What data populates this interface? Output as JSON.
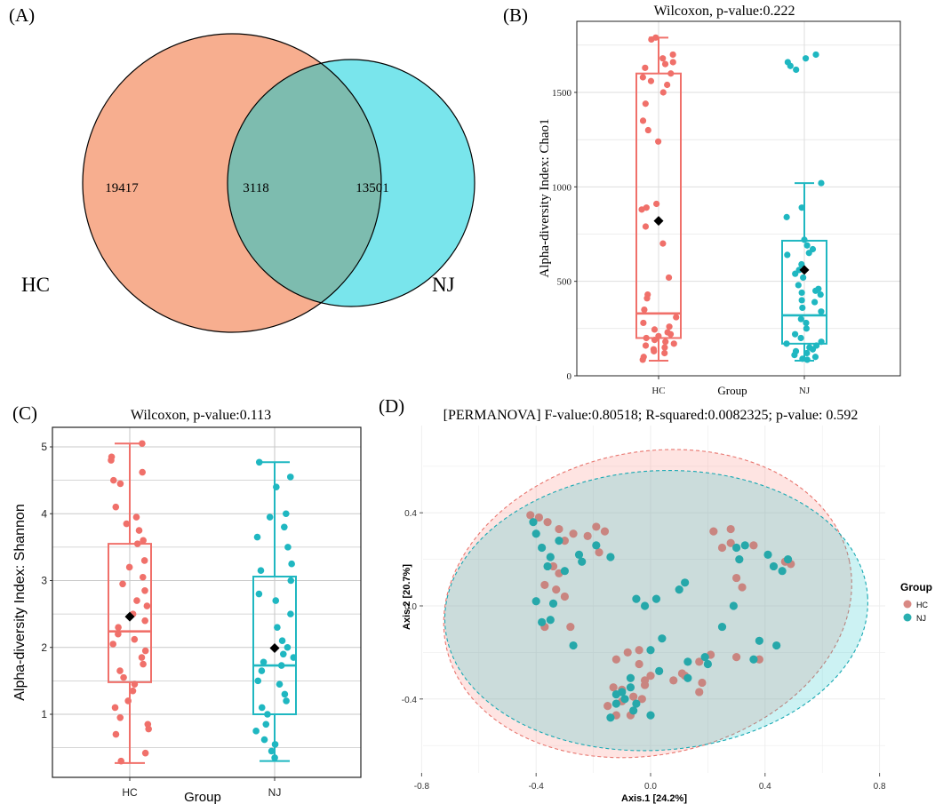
{
  "colors": {
    "hc": "#f0706a",
    "nj": "#1fb7c1",
    "venn_hc": "#f7ae8f",
    "venn_nj": "#79e5ec",
    "venn_overlap": "#7dbcaf",
    "mean_marker": "#000000"
  },
  "chart_data": [
    {
      "panel": "(A)",
      "type": "venn",
      "sets": [
        {
          "label": "HC",
          "only": "19417"
        },
        {
          "label": "NJ",
          "only": "13501"
        }
      ],
      "intersection": "3118"
    },
    {
      "panel": "(B)",
      "type": "box",
      "title": "Wilcoxon, p-value:0.222",
      "xlabel": "Group",
      "ylabel": "Alpha-diversity Index: Chao1",
      "ylim": [
        0,
        1800
      ],
      "yticks": [
        "0",
        "500",
        "1000",
        "1500"
      ],
      "categories": [
        "HC",
        "NJ"
      ],
      "boxes": [
        {
          "group": "HC",
          "min": 80,
          "q1": 200,
          "median": 330,
          "q3": 1600,
          "max": 1790,
          "mean": 820
        },
        {
          "group": "NJ",
          "min": 80,
          "q1": 170,
          "median": 320,
          "q3": 715,
          "max": 1020,
          "mean": 560
        }
      ],
      "points": {
        "HC": [
          1790,
          1780,
          1700,
          1680,
          1660,
          1650,
          1630,
          1600,
          1580,
          1560,
          1540,
          1500,
          1440,
          1350,
          1300,
          1240,
          910,
          890,
          880,
          790,
          700,
          520,
          430,
          410,
          350,
          310,
          280,
          260,
          245,
          230,
          220,
          210,
          200,
          190,
          180,
          170,
          160,
          150,
          140,
          130,
          120,
          100,
          85
        ],
        "NJ": [
          1700,
          1680,
          1660,
          1640,
          1620,
          1020,
          890,
          840,
          720,
          690,
          670,
          650,
          640,
          590,
          560,
          540,
          520,
          480,
          460,
          450,
          440,
          430,
          400,
          390,
          360,
          340,
          300,
          280,
          250,
          220,
          200,
          180,
          170,
          160,
          150,
          140,
          130,
          120,
          110,
          100,
          90,
          85
        ]
      }
    },
    {
      "panel": "(C)",
      "type": "box",
      "title": "Wilcoxon, p-value:0.113",
      "xlabel": "Group",
      "ylabel": "Alpha-diversity Index: Shannon",
      "ylim": [
        0.2,
        5.2
      ],
      "yticks": [
        "1",
        "2",
        "3",
        "4",
        "5"
      ],
      "categories": [
        "HC",
        "NJ"
      ],
      "boxes": [
        {
          "group": "HC",
          "min": 0.27,
          "q1": 1.48,
          "median": 2.24,
          "q3": 3.55,
          "max": 5.05,
          "mean": 2.46
        },
        {
          "group": "NJ",
          "min": 0.3,
          "q1": 1.0,
          "median": 1.73,
          "q3": 3.06,
          "max": 4.77,
          "mean": 1.99
        }
      ],
      "points": {
        "HC": [
          5.05,
          4.85,
          4.8,
          4.62,
          4.5,
          4.45,
          4.1,
          3.95,
          3.85,
          3.75,
          3.6,
          3.55,
          3.3,
          3.2,
          3.05,
          2.95,
          2.85,
          2.7,
          2.62,
          2.5,
          2.4,
          2.3,
          2.2,
          2.12,
          2.05,
          1.95,
          1.85,
          1.75,
          1.65,
          1.55,
          1.45,
          1.35,
          1.2,
          1.1,
          0.95,
          0.85,
          0.78,
          0.7,
          0.42,
          0.3
        ],
        "NJ": [
          4.77,
          4.55,
          4.4,
          4.0,
          3.95,
          3.8,
          3.65,
          3.5,
          3.25,
          3.15,
          3.0,
          2.8,
          2.7,
          2.5,
          2.3,
          2.1,
          2.0,
          1.9,
          1.85,
          1.78,
          1.73,
          1.65,
          1.5,
          1.45,
          1.3,
          1.2,
          1.1,
          1.0,
          0.85,
          0.75,
          0.62,
          0.55,
          0.45,
          0.35
        ]
      }
    },
    {
      "panel": "(D)",
      "type": "scatter",
      "title": "[PERMANOVA] F-value:0.80518; R-squared:0.0082325; p-value: 0.592",
      "xlabel": "Axis.1   [24.2%]",
      "ylabel": "Axis.2   [20.7%]",
      "xlim": [
        -0.82,
        0.82
      ],
      "ylim": [
        -0.72,
        0.78
      ],
      "xticks": [
        "-0.8",
        "-0.4",
        "0.0",
        "0.4",
        "0.8"
      ],
      "yticks": [
        "-0.4",
        "0.0",
        "0.4"
      ],
      "legend_title": "Group",
      "legend": [
        "HC",
        "NJ"
      ],
      "ellipses": [
        {
          "group": "HC",
          "cx": -0.01,
          "cy": 0.01,
          "rx": 0.72,
          "ry": 0.65,
          "angle_deg": -12
        },
        {
          "group": "NJ",
          "cx": 0.02,
          "cy": -0.02,
          "rx": 0.74,
          "ry": 0.6,
          "angle_deg": -4
        }
      ],
      "series": [
        {
          "name": "HC",
          "x": [
            -0.42,
            -0.39,
            -0.36,
            -0.32,
            -0.3,
            -0.27,
            -0.22,
            -0.19,
            -0.16,
            -0.18,
            -0.34,
            -0.32,
            -0.37,
            -0.33,
            -0.3,
            -0.28,
            -0.37,
            -0.04,
            -0.08,
            -0.12,
            -0.04,
            0.0,
            -0.02,
            0.12,
            0.11,
            0.17,
            0.21,
            0.18,
            0.17,
            0.28,
            0.28,
            0.22,
            0.25,
            0.36,
            0.3,
            0.32,
            0.47,
            0.49,
            0.38,
            0.3,
            -0.13,
            -0.1,
            -0.1,
            -0.06,
            -0.03,
            -0.15,
            -0.12,
            -0.07,
            0.08,
            -0.02
          ],
          "y": [
            0.39,
            0.38,
            0.36,
            0.33,
            0.28,
            0.31,
            0.3,
            0.34,
            0.32,
            0.23,
            0.17,
            0.14,
            0.09,
            0.07,
            0.04,
            -0.09,
            -0.09,
            -0.19,
            -0.2,
            -0.23,
            -0.25,
            -0.3,
            -0.34,
            -0.3,
            -0.29,
            -0.24,
            -0.21,
            -0.33,
            -0.37,
            0.33,
            0.27,
            0.32,
            0.25,
            0.26,
            0.12,
            0.08,
            0.19,
            0.18,
            -0.23,
            -0.22,
            -0.35,
            -0.36,
            -0.41,
            -0.39,
            -0.4,
            -0.43,
            -0.47,
            -0.47,
            -0.32,
            -0.32
          ]
        },
        {
          "name": "NJ",
          "x": [
            -0.41,
            -0.4,
            -0.38,
            -0.35,
            -0.32,
            -0.36,
            -0.3,
            -0.25,
            -0.24,
            -0.19,
            -0.14,
            -0.4,
            -0.34,
            -0.38,
            -0.35,
            -0.27,
            -0.05,
            -0.02,
            0.02,
            0.12,
            0.1,
            0.04,
            0.0,
            0.13,
            -0.07,
            0.03,
            -0.1,
            -0.12,
            -0.14,
            -0.07,
            -0.09,
            -0.05,
            0.0,
            0.13,
            0.19,
            0.2,
            0.25,
            0.3,
            0.33,
            0.31,
            0.29,
            0.41,
            0.43,
            0.46,
            0.48,
            0.38,
            0.36,
            0.44,
            -0.06,
            -0.12
          ],
          "y": [
            0.36,
            0.31,
            0.25,
            0.21,
            0.28,
            0.17,
            0.15,
            0.22,
            0.19,
            0.26,
            0.21,
            0.02,
            0.01,
            -0.07,
            -0.06,
            -0.17,
            0.03,
            0.0,
            0.03,
            0.1,
            0.07,
            -0.14,
            -0.19,
            -0.24,
            -0.31,
            -0.28,
            -0.37,
            -0.42,
            -0.48,
            -0.35,
            -0.4,
            -0.42,
            -0.47,
            -0.31,
            -0.22,
            -0.25,
            -0.09,
            0.25,
            0.26,
            0.2,
            0.0,
            0.22,
            0.17,
            0.15,
            0.2,
            -0.15,
            -0.23,
            -0.17,
            -0.45,
            -0.38
          ]
        }
      ]
    }
  ]
}
